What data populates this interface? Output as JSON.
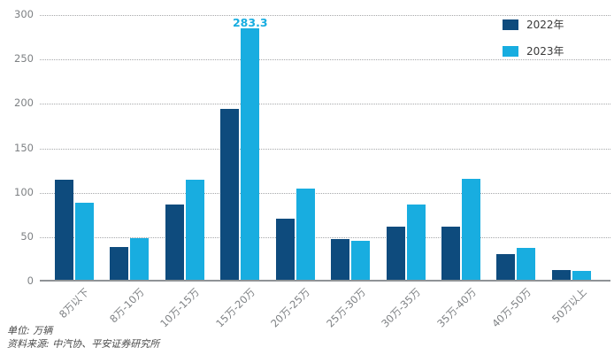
{
  "footer": {
    "unit": "单位: 万辆",
    "source": "资料来源: 中汽协、平安证券研究所"
  },
  "chart_data": {
    "type": "bar",
    "title": "",
    "xlabel": "",
    "ylabel": "",
    "categories": [
      "8万以下",
      "8万-10万",
      "10万-15万",
      "15万-20万",
      "20万-25万",
      "25万-30万",
      "30万-35万",
      "35万-40万",
      "40万-50万",
      "50万以上"
    ],
    "series": [
      {
        "name": "2022年",
        "color": "#0E4B7D",
        "values": [
          113,
          37,
          85,
          192,
          69,
          46,
          60,
          60,
          29,
          11
        ]
      },
      {
        "name": "2023年",
        "color": "#18ADE0",
        "values": [
          87,
          47,
          113,
          283.3,
          103,
          44,
          85,
          114,
          36,
          10
        ]
      }
    ],
    "annotation": {
      "text": "283.3",
      "series": "2023年",
      "category": "15万-20万",
      "color": "#18ADE0"
    },
    "ylim": [
      0,
      300
    ],
    "yticks": [
      0,
      50,
      100,
      150,
      200,
      250,
      300
    ],
    "grid": "horizontal-dotted",
    "legend_position": "top-right"
  }
}
